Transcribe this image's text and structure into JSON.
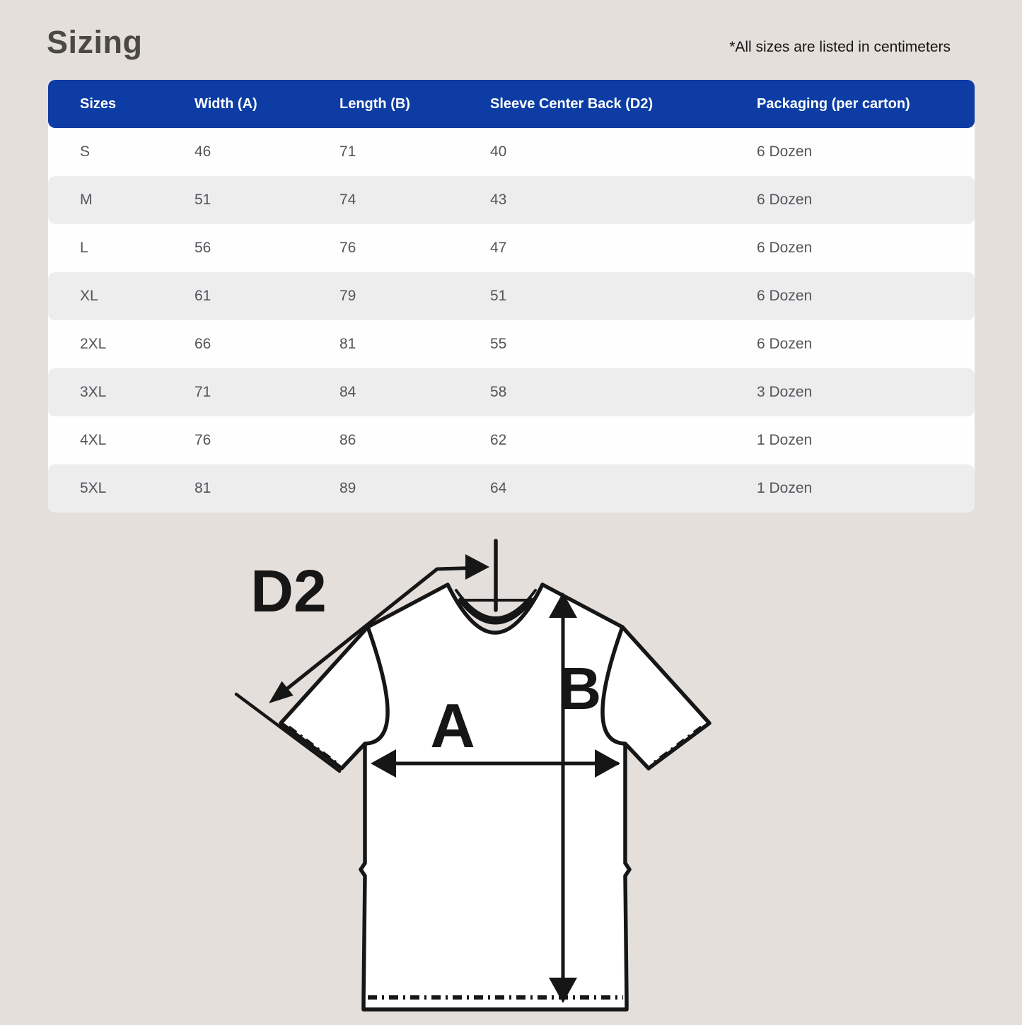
{
  "page": {
    "title": "Sizing",
    "note": "*All sizes are listed in centimeters"
  },
  "table": {
    "columns": [
      "Sizes",
      "Width (A)",
      "Length (B)",
      "Sleeve Center Back (D2)",
      "Packaging (per carton)"
    ],
    "rows": [
      {
        "size": "S",
        "width": "46",
        "length": "71",
        "sleeve": "40",
        "packaging": "6 Dozen"
      },
      {
        "size": "M",
        "width": "51",
        "length": "74",
        "sleeve": "43",
        "packaging": "6 Dozen"
      },
      {
        "size": "L",
        "width": "56",
        "length": "76",
        "sleeve": "47",
        "packaging": "6 Dozen"
      },
      {
        "size": "XL",
        "width": "61",
        "length": "79",
        "sleeve": "51",
        "packaging": "6 Dozen"
      },
      {
        "size": "2XL",
        "width": "66",
        "length": "81",
        "sleeve": "55",
        "packaging": "6 Dozen"
      },
      {
        "size": "3XL",
        "width": "71",
        "length": "84",
        "sleeve": "58",
        "packaging": "3 Dozen"
      },
      {
        "size": "4XL",
        "width": "76",
        "length": "86",
        "sleeve": "62",
        "packaging": "1 Dozen"
      },
      {
        "size": "5XL",
        "width": "81",
        "length": "89",
        "sleeve": "64",
        "packaging": "1 Dozen"
      }
    ]
  },
  "diagram": {
    "labels": {
      "d2": "D2",
      "a": "A",
      "b": "B"
    }
  },
  "colors": {
    "page_bg": "#e4dfdb",
    "header_bg": "#0c3ca4",
    "header_text": "#ffffff",
    "row_alt_bg": "#ededee",
    "cell_text": "#54555b",
    "title_text": "#4b4946",
    "line_color": "#161616"
  }
}
